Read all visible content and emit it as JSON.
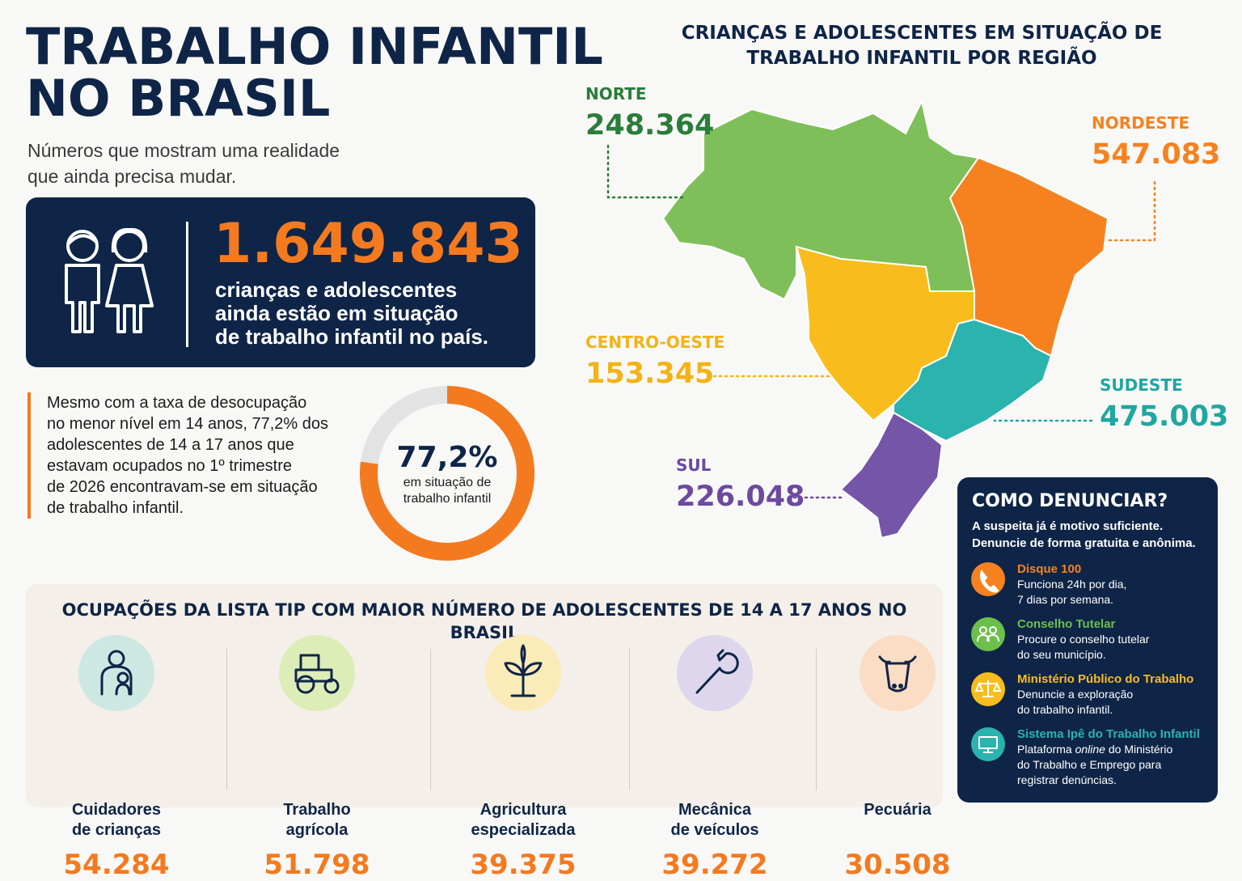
{
  "header": {
    "title_lines": [
      "TRABALHO INFANTIL",
      "NO BRASIL"
    ],
    "subtitle_lines": [
      "Números que mostram uma realidade",
      "que ainda precisa mudar."
    ]
  },
  "highlight": {
    "number": "1.649.843",
    "text_lines": [
      "crianças e adolescentes",
      "ainda estão em situação",
      "de trabalho infantil no país."
    ]
  },
  "note": {
    "lines": [
      "Mesmo com a taxa de desocupação",
      "no menor nível em 14 anos, 77,2% dos",
      "adolescentes de 14 a 17 anos que",
      "estavam ocupados no 1º trimestre",
      "de 2026 encontravam-se em situação",
      "de trabalho infantil."
    ]
  },
  "donut": {
    "value": 77.2,
    "label": "77,2%",
    "caption_lines": [
      "em situação de",
      "trabalho infantil"
    ],
    "color": "#f47a1f",
    "track_color": "#e3e3e3"
  },
  "map": {
    "title_lines": [
      "CRIANÇAS E ADOLESCENTES EM SITUAÇÃO DE",
      "TRABALHO INFANTIL POR REGIÃO"
    ],
    "regions": [
      {
        "name": "NORTE",
        "value": "248.364",
        "color": "#7fbf5a",
        "text_color": "#2a7d3a"
      },
      {
        "name": "NORDESTE",
        "value": "547.083",
        "color": "#f5821f",
        "text_color": "#f5821f"
      },
      {
        "name": "CENTRO-OESTE",
        "value": "153.345",
        "color": "#f8bd1c",
        "text_color": "#f2b316"
      },
      {
        "name": "SUDESTE",
        "value": "475.003",
        "color": "#2bb3ad",
        "text_color": "#1fa7a0"
      },
      {
        "name": "SUL",
        "value": "226.048",
        "color": "#7455a8",
        "text_color": "#6b4aa0"
      }
    ]
  },
  "occupations": {
    "title": "OCUPAÇÕES DA LISTA TIP COM MAIOR NÚMERO DE ADOLESCENTES DE 14 A 17 ANOS NO BRASIL",
    "items": [
      {
        "label_lines": [
          "Cuidadores",
          "de crianças"
        ],
        "value": "54.284"
      },
      {
        "label_lines": [
          "Trabalho",
          "agrícola"
        ],
        "value": "51.798"
      },
      {
        "label_lines": [
          "Agricultura",
          "especializada"
        ],
        "value": "39.375"
      },
      {
        "label_lines": [
          "Mecânica",
          "de veículos"
        ],
        "value": "39.272"
      },
      {
        "label_lines": [
          "Pecuária"
        ],
        "value": "30.508"
      }
    ]
  },
  "report": {
    "title": "COMO DENUNCIAR?",
    "intro_lines": [
      "A suspeita já é motivo suficiente.",
      "Denuncie de forma gratuita e anônima."
    ],
    "channels": [
      {
        "name": "Disque 100",
        "color": "#f5821f",
        "lines": [
          "Funciona 24h por dia,",
          "7 dias por semana."
        ]
      },
      {
        "name": "Conselho Tutelar",
        "color": "#6cbf4a",
        "lines": [
          "Procure o conselho tutelar",
          "do seu município."
        ]
      },
      {
        "name": "Ministério Público do Trabalho",
        "color": "#f8bd1c",
        "lines": [
          "Denuncie a exploração",
          "do trabalho infantil."
        ]
      },
      {
        "name": "Sistema Ipê do Trabalho Infantil",
        "color": "#2bb3ad",
        "lines": [
          [
            "Plataforma",
            "online",
            "do Ministério"
          ],
          "do Trabalho e Emprego para",
          "registrar denúncias."
        ]
      }
    ]
  }
}
